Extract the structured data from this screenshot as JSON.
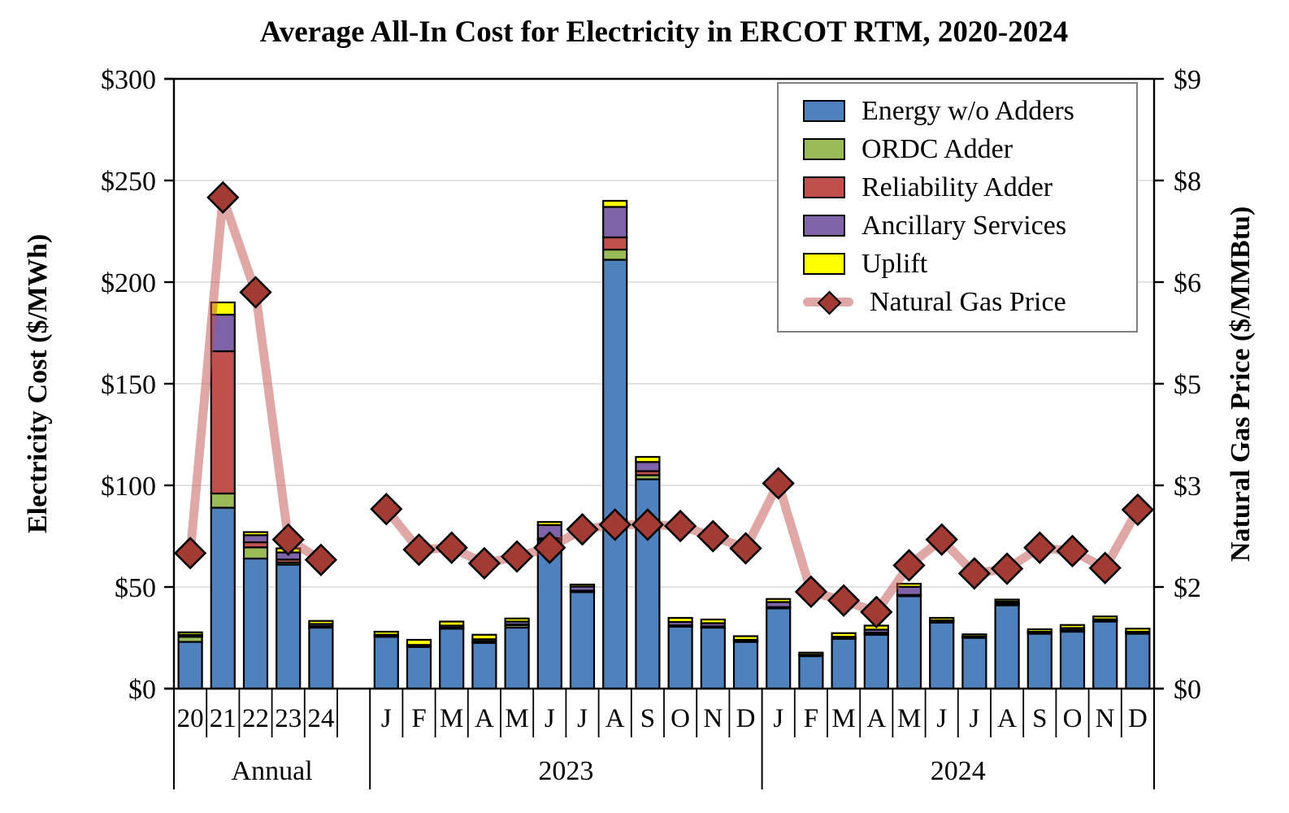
{
  "title": "Average All-In Cost for Electricity in ERCOT RTM, 2020-2024",
  "left_axis": {
    "title": "Electricity Cost ($/MWh)",
    "tick_labels": [
      "$0",
      "$50",
      "$100",
      "$150",
      "$200",
      "$250",
      "$300"
    ],
    "min": 0,
    "max": 300,
    "step": 50
  },
  "right_axis": {
    "title": "Natural Gas Price ($/MMBtu)",
    "tick_labels": [
      "$0",
      "$2",
      "$3",
      "$5",
      "$6",
      "$8",
      "$9"
    ],
    "min": 0,
    "max": 9,
    "step": 1.5
  },
  "legend": {
    "items": [
      "Energy w/o Adders",
      "ORDC Adder",
      "Reliability Adder",
      "Ancillary Services",
      "Uplift",
      "Natural Gas Price"
    ]
  },
  "colors": {
    "energy": "#4F81BD",
    "ordc": "#9BBB59",
    "reliability": "#C0504D",
    "ancillary": "#7E63A8",
    "uplift": "#FFFF00",
    "gas_line": "rgba(192,80,77,0.5)",
    "gas_marker": "#A23B34",
    "gridline": "#D9D9D9",
    "axis": "#000000"
  },
  "chart_data": {
    "type": "stacked-bar-with-line",
    "categories": [
      "20",
      "21",
      "22",
      "23",
      "24",
      "",
      "J",
      "F",
      "M",
      "A",
      "M",
      "J",
      "J",
      "A",
      "S",
      "O",
      "N",
      "D",
      "J",
      "F",
      "M",
      "A",
      "M",
      "J",
      "J",
      "A",
      "S",
      "O",
      "N",
      "D"
    ],
    "groups": [
      {
        "label": "Annual",
        "start": 0,
        "end": 5
      },
      {
        "label": "2023",
        "start": 6,
        "end": 17
      },
      {
        "label": "2024",
        "start": 18,
        "end": 29
      }
    ],
    "bar_series": [
      {
        "name": "Energy w/o Adders",
        "color_key": "energy",
        "values": [
          23,
          89,
          64,
          61,
          30,
          null,
          25.5,
          20.5,
          29.5,
          22.5,
          30,
          73,
          47.5,
          211,
          103,
          30.5,
          30,
          23,
          39.5,
          16,
          24.5,
          26.5,
          45.5,
          32.5,
          25,
          41,
          27,
          28,
          33,
          27
        ]
      },
      {
        "name": "ORDC Adder",
        "color_key": "ordc",
        "values": [
          2.5,
          7,
          5.5,
          1,
          0.4,
          null,
          0.3,
          0.3,
          0.3,
          0.3,
          1.2,
          0.5,
          0.4,
          5,
          2,
          0.3,
          0.3,
          0.2,
          0.3,
          0.2,
          0.3,
          0.5,
          0.3,
          0.3,
          0.2,
          0.5,
          0.3,
          0.4,
          0.3,
          0.3
        ]
      },
      {
        "name": "Reliability Adder",
        "color_key": "reliability",
        "values": [
          0.3,
          70,
          2.5,
          1.5,
          0.3,
          null,
          0.2,
          0.2,
          0.2,
          0.5,
          0.3,
          0.5,
          0.3,
          6,
          2,
          0.3,
          0.3,
          0.2,
          0.3,
          0.2,
          0.2,
          0.5,
          0.3,
          0.3,
          0.2,
          0.5,
          0.3,
          0.4,
          0.3,
          0.2
        ]
      },
      {
        "name": "Ancillary Services",
        "color_key": "ancillary",
        "values": [
          0.7,
          18,
          3.5,
          3.5,
          1.1,
          null,
          0.5,
          0.5,
          1,
          1,
          1.5,
          6.5,
          2,
          15,
          4.5,
          1.7,
          1.6,
          0.6,
          2.5,
          0.3,
          0.5,
          1.5,
          4,
          0.5,
          0.3,
          0.8,
          0.4,
          1,
          0.5,
          0.5
        ]
      },
      {
        "name": "Uplift",
        "color_key": "uplift",
        "values": [
          1.2,
          6,
          1.5,
          2,
          1.5,
          null,
          1.5,
          2.5,
          2,
          2.2,
          1.5,
          1.5,
          1,
          3,
          2.5,
          2,
          1.8,
          1.8,
          1.5,
          1,
          1.8,
          2,
          1.5,
          1.2,
          1,
          1,
          1.2,
          1.5,
          1.4,
          1.5
        ]
      }
    ],
    "line_series": {
      "name": "Natural Gas Price",
      "axis": "right",
      "values": [
        2.0,
        7.25,
        5.85,
        2.2,
        1.9,
        null,
        2.65,
        2.05,
        2.08,
        1.85,
        1.95,
        2.08,
        2.35,
        2.42,
        2.42,
        2.4,
        2.25,
        2.07,
        3.03,
        1.43,
        1.3,
        1.13,
        1.82,
        2.2,
        1.7,
        1.77,
        2.08,
        2.03,
        1.78,
        2.64
      ]
    },
    "ylim_left": [
      0,
      300
    ],
    "ylim_right": [
      0,
      9
    ],
    "grid": true,
    "legend_position": "top-right-inside"
  }
}
